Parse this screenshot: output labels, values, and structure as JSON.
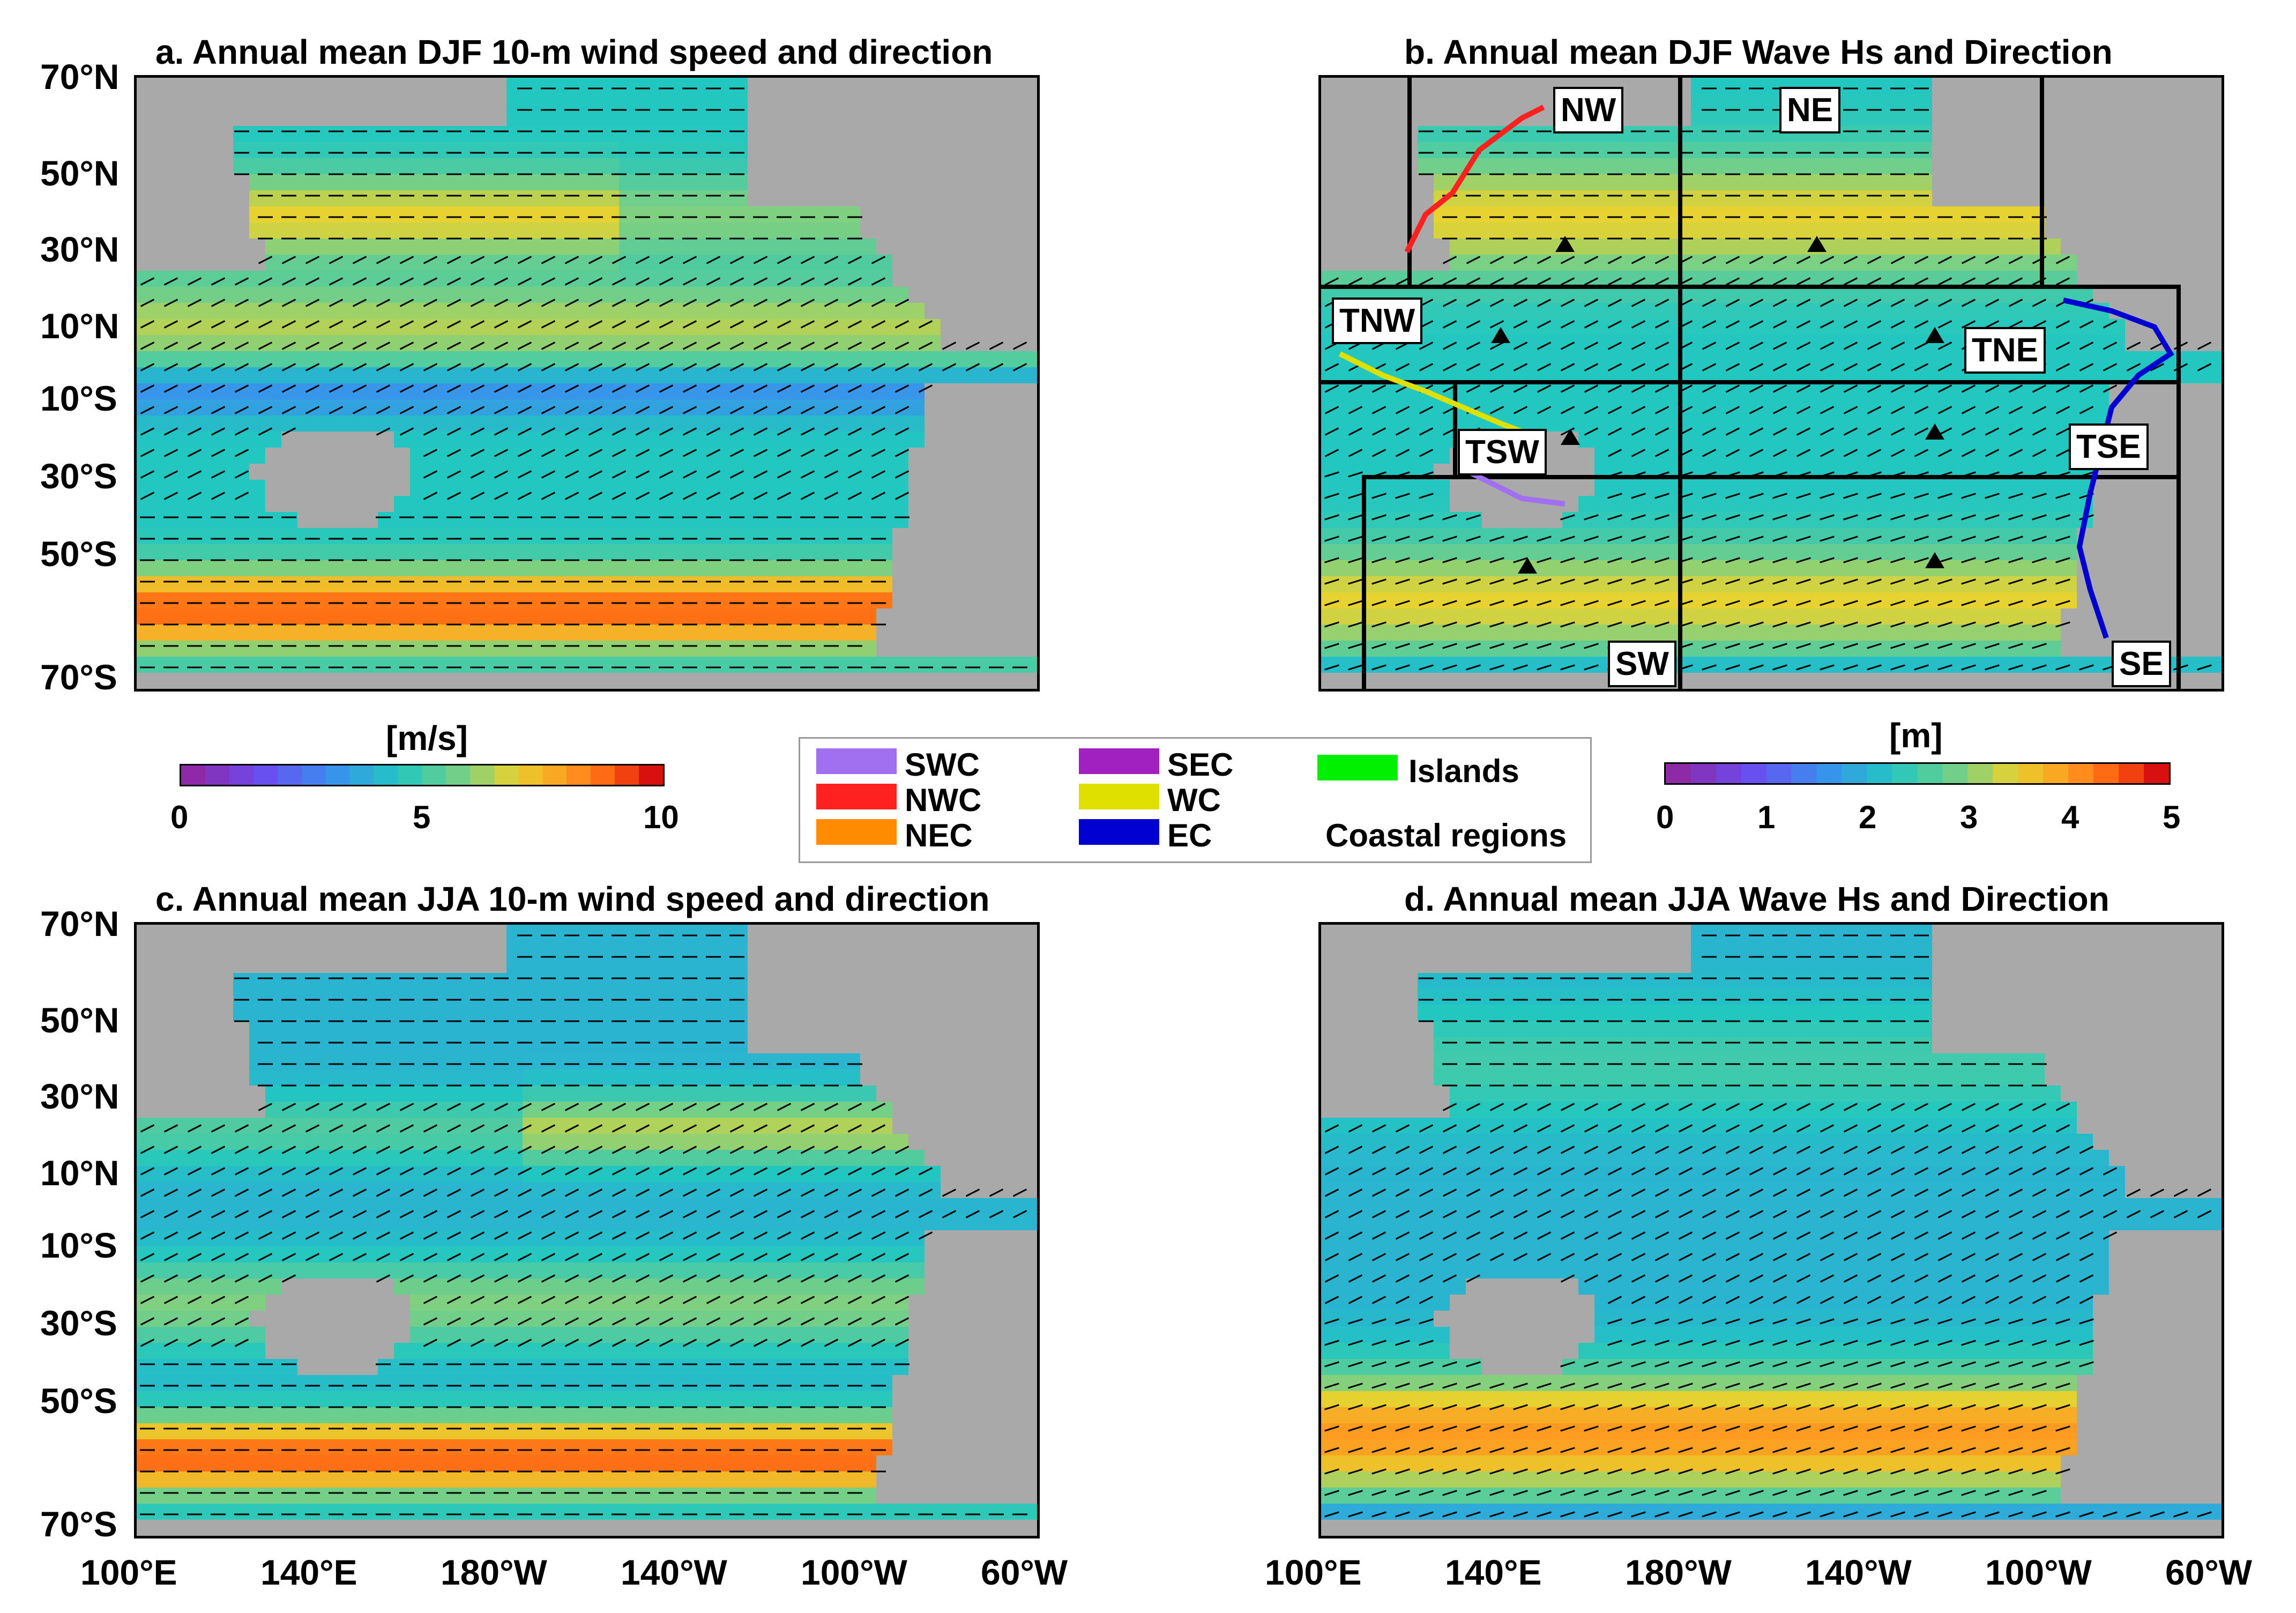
{
  "panels": {
    "a": {
      "title": "a. Annual mean DJF 10-m wind speed and direction"
    },
    "b": {
      "title": "b. Annual mean DJF Wave Hs and Direction"
    },
    "c": {
      "title": "c. Annual mean JJA 10-m wind speed and direction"
    },
    "d": {
      "title": "d. Annual mean JJA Wave Hs and Direction"
    }
  },
  "axes": {
    "lat_ticks": [
      "70°N",
      "50°N",
      "30°N",
      "10°N",
      "10°S",
      "30°S",
      "50°S",
      "70°S"
    ],
    "lon_ticks": [
      "100°E",
      "140°E",
      "180°W",
      "140°W",
      "100°W",
      "60°W"
    ]
  },
  "colorbars": {
    "wind": {
      "unit": "[m/s]",
      "ticks": [
        "0",
        "5",
        "10"
      ],
      "range": [
        0,
        10
      ]
    },
    "wave": {
      "unit": "[m]",
      "ticks": [
        "0",
        "1",
        "2",
        "3",
        "4",
        "5"
      ],
      "range": [
        0,
        5
      ]
    }
  },
  "legend": {
    "title": "Coastal regions",
    "items": [
      {
        "label": "SWC",
        "color": "#a070f0"
      },
      {
        "label": "NWC",
        "color": "#ff2020"
      },
      {
        "label": "NEC",
        "color": "#ff8c00"
      },
      {
        "label": "SEC",
        "color": "#a020c0"
      },
      {
        "label": "WC",
        "color": "#e0e000"
      },
      {
        "label": "EC",
        "color": "#0000d0"
      },
      {
        "label": "Islands",
        "color": "#00f000"
      }
    ]
  },
  "regions": [
    "NW",
    "NE",
    "TNW",
    "TNE",
    "TSW",
    "TSE",
    "SW",
    "SE"
  ],
  "colors": {
    "land": "#a9a9a9",
    "outline": "#000000"
  }
}
